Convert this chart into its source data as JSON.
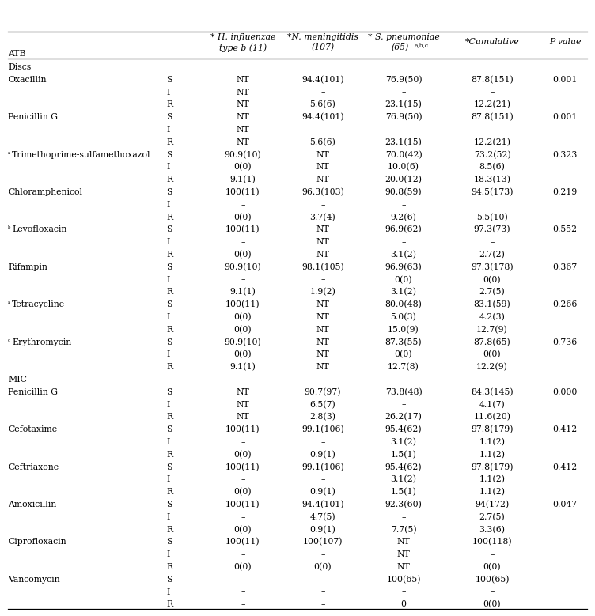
{
  "bg_color": "#ffffff",
  "text_color": "#000000",
  "font_size": 7.8,
  "rows": [
    [
      "Discs",
      "",
      "",
      "",
      "",
      "",
      ""
    ],
    [
      "Oxacillin",
      "S",
      "NT",
      "94.4(101)",
      "76.9(50)",
      "87.8(151)",
      "0.001"
    ],
    [
      "",
      "I",
      "NT",
      "–",
      "–",
      "–",
      ""
    ],
    [
      "",
      "R",
      "NT",
      "5.6(6)",
      "23.1(15)",
      "12.2(21)",
      ""
    ],
    [
      "Penicillin G",
      "S",
      "NT",
      "94.4(101)",
      "76.9(50)",
      "87.8(151)",
      "0.001"
    ],
    [
      "",
      "I",
      "NT",
      "–",
      "–",
      "–",
      ""
    ],
    [
      "",
      "R",
      "NT",
      "5.6(6)",
      "23.1(15)",
      "12.2(21)",
      ""
    ],
    [
      "aTrimethoprime-sulfamethoxazol",
      "S",
      "90.9(10)",
      "NT",
      "70.0(42)",
      "73.2(52)",
      "0.323"
    ],
    [
      "",
      "I",
      "0(0)",
      "NT",
      "10.0(6)",
      "8.5(6)",
      ""
    ],
    [
      "",
      "R",
      "9.1(1)",
      "NT",
      "20.0(12)",
      "18.3(13)",
      ""
    ],
    [
      "Chloramphenicol",
      "S",
      "100(11)",
      "96.3(103)",
      "90.8(59)",
      "94.5(173)",
      "0.219"
    ],
    [
      "",
      "I",
      "–",
      "–",
      "–",
      "",
      ""
    ],
    [
      "",
      "R",
      "0(0)",
      "3.7(4)",
      "9.2(6)",
      "5.5(10)",
      ""
    ],
    [
      "bLevofloxacin",
      "S",
      "100(11)",
      "NT",
      "96.9(62)",
      "97.3(73)",
      "0.552"
    ],
    [
      "",
      "I",
      "–",
      "NT",
      "–",
      "–",
      ""
    ],
    [
      "",
      "R",
      "0(0)",
      "NT",
      "3.1(2)",
      "2.7(2)",
      ""
    ],
    [
      "Rifampin",
      "S",
      "90.9(10)",
      "98.1(105)",
      "96.9(63)",
      "97.3(178)",
      "0.367"
    ],
    [
      "",
      "I",
      "–",
      "–",
      "0(0)",
      "0(0)",
      ""
    ],
    [
      "",
      "R",
      "9.1(1)",
      "1.9(2)",
      "3.1(2)",
      "2.7(5)",
      ""
    ],
    [
      "aTetracycline",
      "S",
      "100(11)",
      "NT",
      "80.0(48)",
      "83.1(59)",
      "0.266"
    ],
    [
      "",
      "I",
      "0(0)",
      "NT",
      "5.0(3)",
      "4.2(3)",
      ""
    ],
    [
      "",
      "R",
      "0(0)",
      "NT",
      "15.0(9)",
      "12.7(9)",
      ""
    ],
    [
      "cErythromycin",
      "S",
      "90.9(10)",
      "NT",
      "87.3(55)",
      "87.8(65)",
      "0.736"
    ],
    [
      "",
      "I",
      "0(0)",
      "NT",
      "0(0)",
      "0(0)",
      ""
    ],
    [
      "",
      "R",
      "9.1(1)",
      "NT",
      "12.7(8)",
      "12.2(9)",
      ""
    ],
    [
      "MIC",
      "",
      "",
      "",
      "",
      "",
      ""
    ],
    [
      "Penicillin G",
      "S",
      "NT",
      "90.7(97)",
      "73.8(48)",
      "84.3(145)",
      "0.000"
    ],
    [
      "",
      "I",
      "NT",
      "6.5(7)",
      "–",
      "4.1(7)",
      ""
    ],
    [
      "",
      "R",
      "NT",
      "2.8(3)",
      "26.2(17)",
      "11.6(20)",
      ""
    ],
    [
      "Cefotaxime",
      "S",
      "100(11)",
      "99.1(106)",
      "95.4(62)",
      "97.8(179)",
      "0.412"
    ],
    [
      "",
      "I",
      "–",
      "–",
      "3.1(2)",
      "1.1(2)",
      ""
    ],
    [
      "",
      "R",
      "0(0)",
      "0.9(1)",
      "1.5(1)",
      "1.1(2)",
      ""
    ],
    [
      "Ceftriaxone",
      "S",
      "100(11)",
      "99.1(106)",
      "95.4(62)",
      "97.8(179)",
      "0.412"
    ],
    [
      "",
      "I",
      "–",
      "–",
      "3.1(2)",
      "1.1(2)",
      ""
    ],
    [
      "",
      "R",
      "0(0)",
      "0.9(1)",
      "1.5(1)",
      "1.1(2)",
      ""
    ],
    [
      "Amoxicillin",
      "S",
      "100(11)",
      "94.4(101)",
      "92.3(60)",
      "94(172)",
      "0.047"
    ],
    [
      "",
      "I",
      "–",
      "4.7(5)",
      "–",
      "2.7(5)",
      ""
    ],
    [
      "",
      "R",
      "0(0)",
      "0.9(1)",
      "7.7(5)",
      "3.3(6)",
      ""
    ],
    [
      "Ciprofloxacin",
      "S",
      "100(11)",
      "100(107)",
      "NT",
      "100(118)",
      "–"
    ],
    [
      "",
      "I",
      "–",
      "–",
      "NT",
      "–",
      ""
    ],
    [
      "",
      "R",
      "0(0)",
      "0(0)",
      "NT",
      "0(0)",
      ""
    ],
    [
      "Vancomycin",
      "S",
      "–",
      "–",
      "100(65)",
      "100(65)",
      "–"
    ],
    [
      "",
      "I",
      "–",
      "–",
      "–",
      "–",
      ""
    ],
    [
      "",
      "R",
      "–",
      "–",
      "0",
      "0(0)",
      ""
    ]
  ],
  "superscripts": {
    "aTrimethoprime-sulfamethoxazol": [
      "a",
      "Trimethoprime-sulfamethoxazol"
    ],
    "bLevofloxacin": [
      "b",
      "Levofloxacin"
    ],
    "aTetracycline": [
      "a",
      "Tetracycline"
    ],
    "cErythromycin": [
      "c",
      "Erythromycin"
    ]
  }
}
